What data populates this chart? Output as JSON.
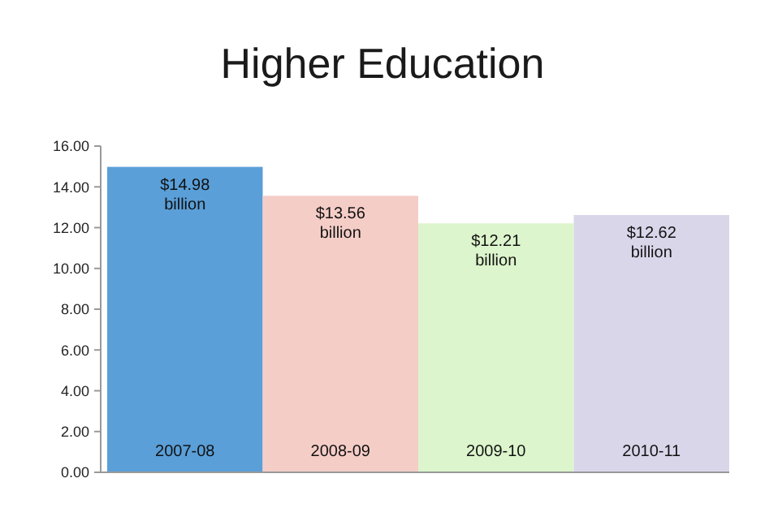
{
  "chart_data": {
    "type": "bar",
    "title": "Higher Education",
    "categories": [
      "2007-08",
      "2008-09",
      "2009-10",
      "2010-11"
    ],
    "values": [
      14.98,
      13.56,
      12.21,
      12.62
    ],
    "colors": [
      "#5a9fd8",
      "#f5cdc7",
      "#dcf5cc",
      "#dad6ea"
    ],
    "value_labels": [
      "$14.98 billion",
      "$13.56 billion",
      "$12.21 billion",
      "$12.62 billion"
    ],
    "ylim": [
      0,
      16
    ],
    "yticks": [
      {
        "value": 0,
        "label": "0.00"
      },
      {
        "value": 2,
        "label": "2.00"
      },
      {
        "value": 4,
        "label": "4.00"
      },
      {
        "value": 6,
        "label": "6.00"
      },
      {
        "value": 8,
        "label": "8.00"
      },
      {
        "value": 10,
        "label": "10.00"
      },
      {
        "value": 12,
        "label": "12.00"
      },
      {
        "value": 14,
        "label": "14.00"
      },
      {
        "value": 16,
        "label": "16.00"
      }
    ],
    "grid": false
  }
}
